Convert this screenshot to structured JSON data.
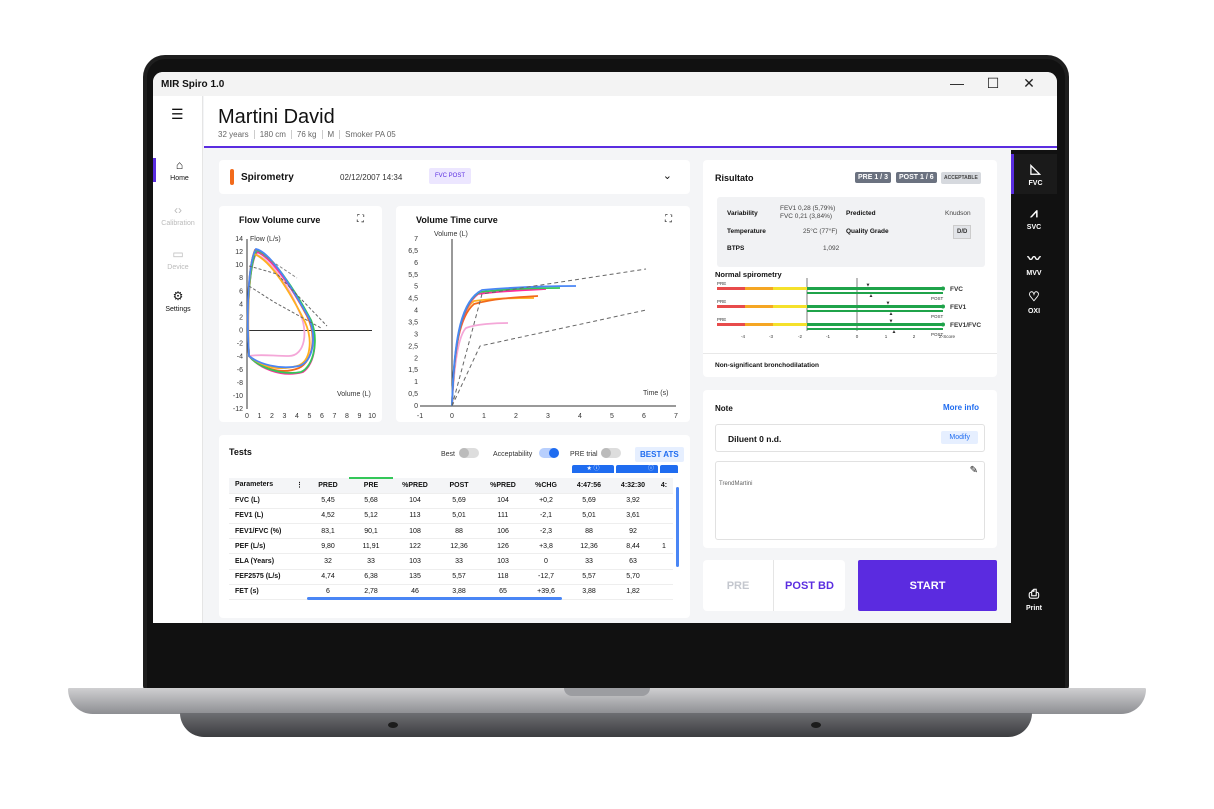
{
  "app": {
    "title": "MIR Spiro 1.0",
    "win_min": "—",
    "win_max": "☐",
    "win_close": "✕"
  },
  "sidebar": {
    "items": [
      {
        "label": "Home",
        "icon": "home-icon",
        "glyph": "⌂"
      },
      {
        "label": "Calibration",
        "icon": "code-icon",
        "glyph": "‹›"
      },
      {
        "label": "Device",
        "icon": "device-icon",
        "glyph": "▭"
      },
      {
        "label": "Settings",
        "icon": "gear-icon",
        "glyph": "⚙"
      }
    ]
  },
  "patient": {
    "name": "Martini David",
    "meta": [
      "32 years",
      "180 cm",
      "76 kg",
      "M",
      "Smoker PA 05"
    ]
  },
  "spirometry": {
    "title": "Spirometry",
    "date": "02/12/2007 14:34",
    "tag": "FVC POST"
  },
  "flow_volume": {
    "title": "Flow Volume curve",
    "ylabel": "Flow (L/s)",
    "xlabel": "Volume (L)",
    "yticks": [
      "14",
      "12",
      "10",
      "8",
      "6",
      "4",
      "2",
      "0",
      "-2",
      "-4",
      "-6",
      "-8",
      "-10",
      "-12"
    ],
    "xticks": [
      "0",
      "1",
      "2",
      "3",
      "4",
      "5",
      "6",
      "7",
      "8",
      "9",
      "10"
    ]
  },
  "volume_time": {
    "title": "Volume Time curve",
    "ylabel": "Volume (L)",
    "xlabel": "Time (s)",
    "yticks": [
      "7",
      "6,5",
      "6",
      "5,5",
      "5",
      "4,5",
      "4",
      "3,5",
      "3",
      "2,5",
      "2",
      "1,5",
      "1",
      "0,5",
      "0"
    ],
    "xticks": [
      "-1",
      "0",
      "1",
      "2",
      "3",
      "4",
      "5",
      "6",
      "7"
    ]
  },
  "tests": {
    "title": "Tests",
    "toggles": [
      {
        "label": "Best",
        "on": false
      },
      {
        "label": "Acceptability",
        "on": true
      },
      {
        "label": "PRE trial",
        "on": false
      }
    ],
    "best_ats": "BEST ATS",
    "headers": [
      "Parameters",
      "PRED",
      "PRE",
      "%PRED",
      "POST",
      "%PRED",
      "%CHG",
      "4:47:56",
      "4:32:30",
      "4:"
    ],
    "rows": [
      [
        "FVC (L)",
        "5,45",
        "5,68",
        "104",
        "5,69",
        "104",
        "+0,2",
        "5,69",
        "3,92",
        ""
      ],
      [
        "FEV1 (L)",
        "4,52",
        "5,12",
        "113",
        "5,01",
        "111",
        "-2,1",
        "5,01",
        "3,61",
        ""
      ],
      [
        "FEV1/FVC (%)",
        "83,1",
        "90,1",
        "108",
        "88",
        "106",
        "-2,3",
        "88",
        "92",
        ""
      ],
      [
        "PEF (L/s)",
        "9,80",
        "11,91",
        "122",
        "12,36",
        "126",
        "+3,8",
        "12,36",
        "8,44",
        "1"
      ],
      [
        "ELA (Years)",
        "32",
        "33",
        "103",
        "33",
        "103",
        "0",
        "33",
        "63",
        ""
      ],
      [
        "FEF2575 (L/s)",
        "4,74",
        "6,38",
        "135",
        "5,57",
        "118",
        "-12,7",
        "5,57",
        "5,70",
        ""
      ],
      [
        "FET (s)",
        "6",
        "2,78",
        "46",
        "3,88",
        "65",
        "+39,6",
        "3,88",
        "1,82",
        ""
      ]
    ]
  },
  "result": {
    "title": "Risultato",
    "badge_pre": "PRE 1 / 3",
    "badge_post": "POST 1 / 6",
    "badge_acc": "ACCEPTABLE",
    "variability_label": "Variability",
    "variability_fev1": "FEV1 0,28 (5,79%)",
    "variability_fvc": "FVC 0,21 (3,84%)",
    "predicted_label": "Predicted",
    "predicted_value": "Knudson",
    "temperature_label": "Temperature",
    "temperature_value": "25°C (77°F)",
    "quality_label": "Quality Grade",
    "quality_value": "D/D",
    "btps_label": "BTPS",
    "btps_value": "1,092",
    "normal_title": "Normal spirometry",
    "lln": "LLN",
    "predicted": "Predicted",
    "pre": "PRE",
    "post": "POST",
    "bars": [
      "FVC",
      "FEV1",
      "FEV1/FVC"
    ],
    "zticks": [
      "-4",
      "-3",
      "-2",
      "-1",
      "0",
      "1",
      "2"
    ],
    "zlabel": "Z-Score",
    "footer": "Non-significant bronchodilatation"
  },
  "note": {
    "title": "Note",
    "more_info": "More info",
    "diluent": "Diluent 0 n.d.",
    "modify": "Modify",
    "trend": "TrendMartini"
  },
  "actions": {
    "pre": "PRE",
    "post": "POST BD",
    "start": "START"
  },
  "rail": {
    "items": [
      {
        "label": "FVC",
        "icon": "fvc-icon"
      },
      {
        "label": "SVC",
        "icon": "svc-icon"
      },
      {
        "label": "MVV",
        "icon": "mvv-icon"
      },
      {
        "label": "OXI",
        "icon": "oxi-icon"
      },
      {
        "label": "Print",
        "icon": "printer-icon"
      }
    ]
  },
  "colors": {
    "accent": "#5a2de0",
    "blue": "#1f6cf0",
    "orange": "#f26a1b"
  }
}
